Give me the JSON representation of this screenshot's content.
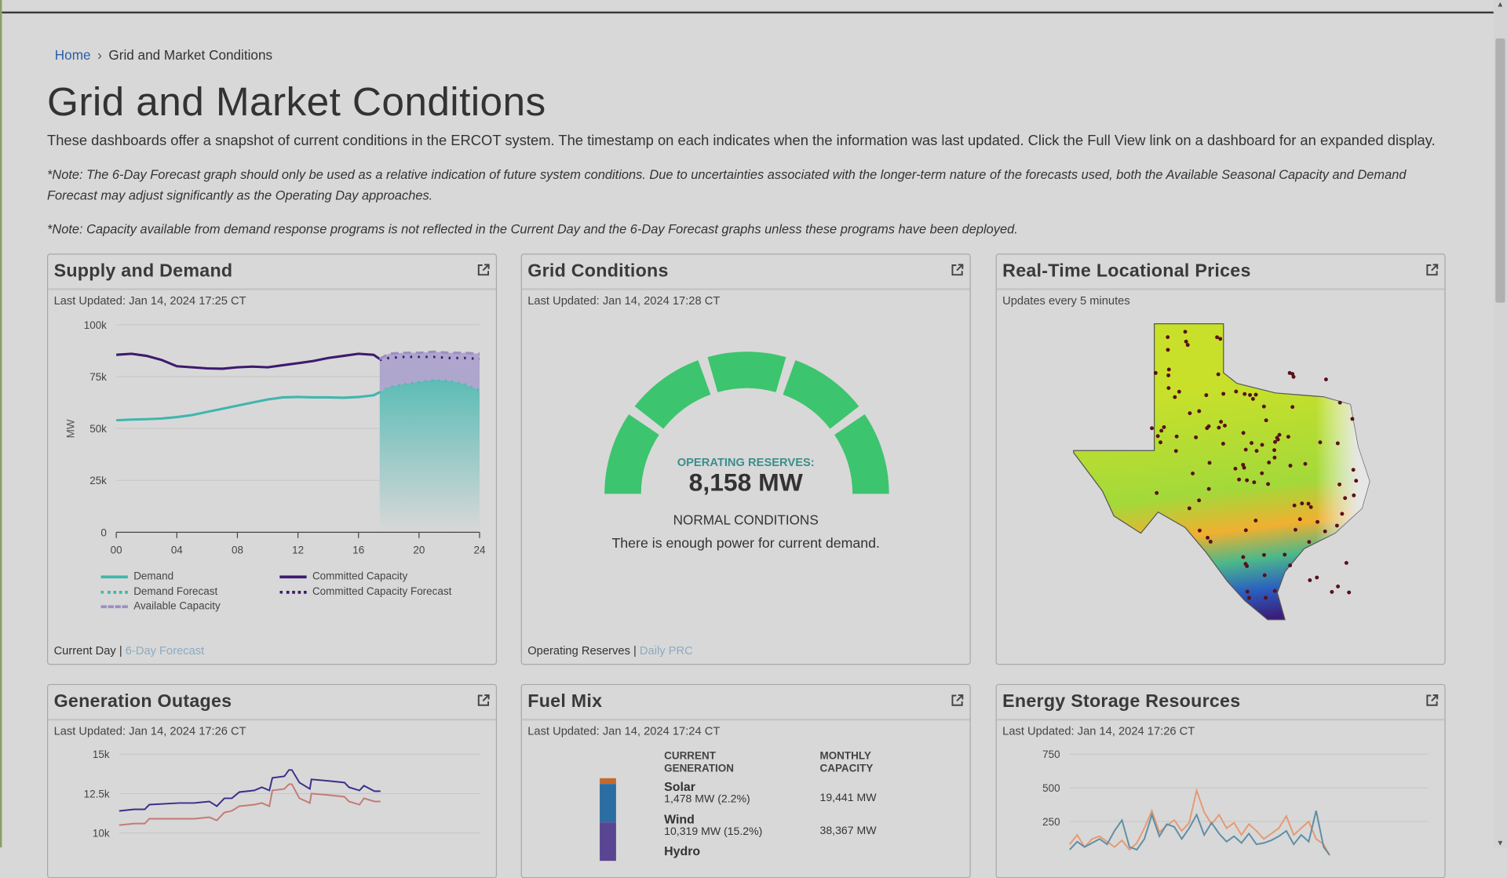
{
  "breadcrumb": {
    "home": "Home",
    "separator": "›",
    "current": "Grid and Market Conditions"
  },
  "page": {
    "title": "Grid and Market Conditions",
    "intro": "These dashboards offer a snapshot of current conditions in the ERCOT system. The timestamp on each indicates when the information was last updated. Click the Full View link on a dashboard for an expanded display.",
    "note1": "*Note: The 6-Day Forecast graph should only be used as a relative indication of future system conditions. Due to uncertainties associated with the longer-term nature of the forecasts used, both the Available Seasonal Capacity and Demand Forecast may adjust significantly as the Operating Day approaches.",
    "note2": "*Note: Capacity available from demand response programs is not reflected in the Current Day and the 6-Day Forecast graphs unless these programs have been deployed."
  },
  "cards": {
    "supply": {
      "title": "Supply and Demand",
      "updated": "Last Updated: Jan 14, 2024 17:25 CT",
      "foot_current": "Current Day",
      "foot_sep": " | ",
      "foot_link": "6-Day Forecast",
      "legend": [
        "Demand",
        "Demand Forecast",
        "Available Capacity",
        "Committed Capacity",
        "Committed Capacity Forecast"
      ]
    },
    "grid": {
      "title": "Grid Conditions",
      "updated": "Last Updated: Jan 14, 2024 17:28 CT",
      "reserves_label": "OPERATING RESERVES:",
      "reserves_value": "8,158 MW",
      "status": "NORMAL CONDITIONS",
      "message": "There is enough power for current demand.",
      "foot_current": "Operating Reserves",
      "foot_sep": " | ",
      "foot_link": "Daily PRC",
      "gauge_level": "normal",
      "gauge_color": "#3dc46e"
    },
    "prices": {
      "title": "Real-Time Locational Prices",
      "updated": "Updates every 5 minutes"
    },
    "outages": {
      "title": "Generation Outages",
      "updated": "Last Updated: Jan 14, 2024 17:26 CT"
    },
    "fuel": {
      "title": "Fuel Mix",
      "updated": "Last Updated: Jan 14, 2024 17:24 CT",
      "col1": "CURRENT GENERATION",
      "col2": "MONTHLY CAPACITY",
      "rows": [
        {
          "name": "Solar",
          "current": "1,478 MW (2.2%)",
          "capacity": "19,441 MW",
          "color": "#c8682a"
        },
        {
          "name": "Wind",
          "current": "10,319 MW (15.2%)",
          "capacity": "38,367 MW",
          "color": "#2b6ea3"
        },
        {
          "name": "Hydro",
          "current": "",
          "capacity": "",
          "color": "#5a4592"
        }
      ]
    },
    "storage": {
      "title": "Energy Storage Resources",
      "updated": "Last Updated: Jan 14, 2024 17:26 CT"
    }
  },
  "icons": {
    "external": "external-link-icon"
  },
  "colors": {
    "demand": "#3fb6ad",
    "committed": "#3d1a6e",
    "available": "#9b8fc4",
    "outage_a": "#3b2e8a",
    "outage_b": "#c47a78",
    "storage_a": "#e59a72",
    "storage_b": "#5f8ea6",
    "gauge": "#3dc46e",
    "link": "#2b5fa8"
  },
  "chart_data": [
    {
      "type": "line",
      "id": "supply-demand",
      "ylabel": "MW",
      "ylim": [
        0,
        100000
      ],
      "yticks": [
        "0",
        "25k",
        "50k",
        "75k",
        "100k"
      ],
      "yvals": [
        0,
        25000,
        50000,
        75000,
        100000
      ],
      "xlim": [
        0,
        24
      ],
      "xticks": [
        "00",
        "04",
        "08",
        "12",
        "16",
        "20",
        "24"
      ],
      "series": [
        {
          "name": "Demand",
          "x": [
            0,
            1,
            2,
            3,
            4,
            5,
            6,
            7,
            8,
            9,
            10,
            11,
            12,
            13,
            14,
            15,
            16,
            17,
            17.4
          ],
          "values": [
            54000,
            54300,
            54500,
            54800,
            55500,
            56500,
            58000,
            59500,
            61000,
            62500,
            64000,
            65000,
            65200,
            65000,
            65000,
            64800,
            65200,
            66000,
            67500
          ]
        },
        {
          "name": "Committed Capacity",
          "x": [
            0,
            1,
            2,
            3,
            4,
            5,
            6,
            7,
            8,
            9,
            10,
            11,
            12,
            13,
            14,
            15,
            16,
            17,
            17.4
          ],
          "values": [
            85500,
            86000,
            85000,
            83000,
            80000,
            79500,
            79000,
            78800,
            79500,
            79800,
            79500,
            80500,
            81500,
            82500,
            84000,
            85000,
            86000,
            85500,
            83500
          ]
        },
        {
          "name": "Demand Forecast",
          "x": [
            17.4,
            18,
            19,
            20,
            21,
            22,
            23,
            24
          ],
          "values": [
            67500,
            70000,
            71500,
            72500,
            73500,
            73000,
            71500,
            68500
          ]
        },
        {
          "name": "Committed Capacity Forecast",
          "x": [
            17.4,
            18,
            19,
            20,
            21,
            22,
            23,
            24
          ],
          "values": [
            83000,
            84000,
            84500,
            84500,
            84500,
            84000,
            84000,
            83500
          ]
        },
        {
          "name": "Available Capacity",
          "x": [
            17.4,
            18,
            19,
            20,
            21,
            22,
            23,
            24
          ],
          "values": [
            83500,
            86000,
            86500,
            86500,
            87000,
            86500,
            86500,
            86000
          ]
        }
      ]
    },
    {
      "type": "line",
      "id": "generation-outages",
      "yticks": [
        "10k",
        "12.5k",
        "15k"
      ],
      "yvals": [
        10000,
        12500,
        15000
      ],
      "xlim": [
        0,
        24
      ],
      "series": [
        {
          "x": [
            0,
            1,
            1.7,
            2,
            4,
            5,
            6,
            6.5,
            7,
            7.5,
            8,
            9,
            9.5,
            10,
            10.2,
            11,
            11.3,
            11.5,
            12,
            12.7,
            12.8,
            14,
            15,
            15.3,
            16,
            16.3,
            17,
            17.4
          ],
          "values": [
            11400,
            11500,
            11500,
            11800,
            11900,
            11900,
            12000,
            11700,
            12200,
            12200,
            12600,
            12700,
            12900,
            12700,
            13500,
            13600,
            14000,
            14000,
            13200,
            12800,
            13400,
            13300,
            13200,
            12900,
            12700,
            13000,
            12650,
            12650
          ]
        },
        {
          "x": [
            0,
            1,
            1.7,
            2,
            4,
            5,
            6,
            6.5,
            7,
            7.5,
            8,
            9,
            9.5,
            10,
            10.2,
            11,
            11.3,
            11.5,
            12,
            12.7,
            12.8,
            14,
            15,
            15.3,
            16,
            16.3,
            17,
            17.4
          ],
          "values": [
            10500,
            10600,
            10600,
            10900,
            10900,
            10900,
            11000,
            10800,
            11300,
            11400,
            11700,
            11800,
            11900,
            11700,
            12700,
            12800,
            13100,
            13100,
            12200,
            11900,
            12500,
            12400,
            12300,
            12000,
            11800,
            12200,
            12000,
            12000
          ]
        }
      ]
    },
    {
      "type": "line",
      "id": "energy-storage",
      "yticks": [
        "250",
        "500",
        "750"
      ],
      "yvals": [
        250,
        500,
        750
      ],
      "xlim": [
        0,
        24
      ],
      "series": [
        {
          "x": [
            0,
            0.5,
            1,
            1.5,
            2,
            2.5,
            3,
            3.5,
            4,
            4.5,
            5,
            5.5,
            6,
            6.5,
            7,
            7.5,
            8,
            8.5,
            9,
            9.5,
            10,
            10.5,
            11,
            11.5,
            12,
            12.5,
            13,
            13.5,
            14,
            14.5,
            15,
            15.5,
            16,
            16.5,
            17,
            17.4
          ],
          "values": [
            80,
            150,
            60,
            120,
            140,
            100,
            60,
            110,
            40,
            90,
            200,
            330,
            170,
            220,
            260,
            180,
            240,
            480,
            320,
            230,
            300,
            200,
            240,
            150,
            230,
            180,
            120,
            160,
            200,
            290,
            150,
            200,
            250,
            120,
            80,
            0
          ]
        },
        {
          "x": [
            0,
            0.5,
            1,
            1.5,
            2,
            2.5,
            3,
            3.5,
            4,
            4.5,
            5,
            5.5,
            6,
            6.5,
            7,
            7.5,
            8,
            8.5,
            9,
            9.5,
            10,
            10.5,
            11,
            11.5,
            12,
            12.5,
            13,
            13.5,
            14,
            14.5,
            15,
            15.5,
            16,
            16.5,
            17,
            17.4
          ],
          "values": [
            40,
            100,
            60,
            90,
            120,
            80,
            180,
            260,
            60,
            40,
            120,
            300,
            140,
            230,
            210,
            120,
            200,
            300,
            150,
            240,
            160,
            100,
            140,
            90,
            160,
            80,
            90,
            110,
            140,
            180,
            80,
            150,
            100,
            330,
            60,
            0
          ]
        }
      ]
    }
  ]
}
